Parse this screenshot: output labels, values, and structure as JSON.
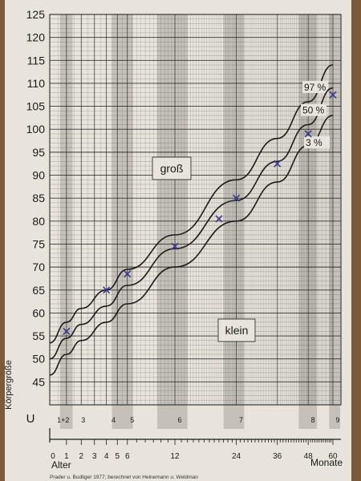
{
  "chart_data": {
    "type": "line",
    "ylabel": "Körpergröße",
    "xlabel_left": "Alter",
    "xlabel_right": "Monate",
    "ylim": [
      40,
      125
    ],
    "yticks": [
      45,
      50,
      55,
      60,
      65,
      70,
      75,
      80,
      85,
      90,
      95,
      100,
      105,
      110,
      115,
      120,
      125
    ],
    "xscale": "log",
    "xticks": [
      {
        "value": 0,
        "label": "0"
      },
      {
        "value": 1,
        "label": "1"
      },
      {
        "value": 2,
        "label": "2"
      },
      {
        "value": 3,
        "label": "3"
      },
      {
        "value": 4,
        "label": "4"
      },
      {
        "value": 5,
        "label": "5"
      },
      {
        "value": 6,
        "label": "6"
      },
      {
        "value": 12,
        "label": "12"
      },
      {
        "value": 24,
        "label": "24"
      },
      {
        "value": 36,
        "label": "36"
      },
      {
        "value": 48,
        "label": "48"
      },
      {
        "value": 60,
        "label": "60"
      }
    ],
    "u_row_label": "U",
    "u_examinations": [
      "1+2",
      "3",
      "4",
      "5",
      "6",
      "7",
      "8",
      "9"
    ],
    "region_labels": {
      "upper": "groß",
      "lower": "klein"
    },
    "series": [
      {
        "name": "97 %",
        "x": [
          0,
          1,
          2,
          4,
          6,
          12,
          24,
          36,
          48,
          60
        ],
        "y": [
          53.5,
          58,
          61,
          65,
          69.5,
          77,
          89,
          98,
          106,
          114
        ]
      },
      {
        "name": "50 %",
        "x": [
          0,
          1,
          2,
          4,
          6,
          12,
          24,
          36,
          48,
          60
        ],
        "y": [
          50,
          54.5,
          57.5,
          61.5,
          66,
          74,
          84.5,
          93,
          101,
          109
        ]
      },
      {
        "name": "3 %",
        "x": [
          0,
          1,
          2,
          4,
          6,
          12,
          24,
          36,
          48,
          60
        ],
        "y": [
          46.5,
          51,
          54,
          58,
          62,
          70,
          80,
          88.5,
          96.5,
          103
        ]
      }
    ],
    "measurements": [
      {
        "x": 1,
        "y": 56
      },
      {
        "x": 4,
        "y": 65
      },
      {
        "x": 6,
        "y": 68.5
      },
      {
        "x": 12,
        "y": 74.5
      },
      {
        "x": 20,
        "y": 80.5
      },
      {
        "x": 24,
        "y": 85
      },
      {
        "x": 36,
        "y": 92.5
      },
      {
        "x": 48,
        "y": 99
      },
      {
        "x": 60,
        "y": 107.5
      }
    ],
    "footer": "Prader u. Budliger 1977; berechnet von Heinemann u. Weldman",
    "colors": {
      "paper": "#e8e4dc",
      "ink": "#1a1a1a",
      "band": "#b9b5ad",
      "marker": "#3a3a8a",
      "background": "#7a5a38"
    }
  }
}
